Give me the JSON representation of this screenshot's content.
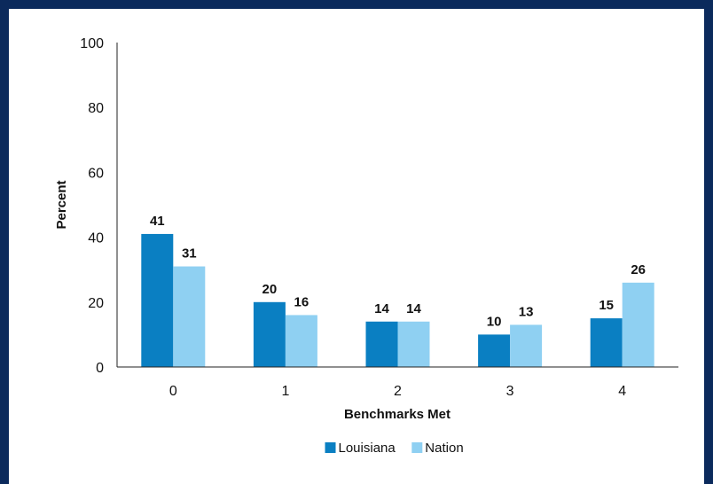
{
  "chart_data": {
    "type": "bar",
    "title": "",
    "xlabel": "Benchmarks Met",
    "ylabel": "Percent",
    "ylim": [
      0,
      100
    ],
    "yticks": [
      0,
      20,
      40,
      60,
      80,
      100
    ],
    "categories": [
      "0",
      "1",
      "2",
      "3",
      "4"
    ],
    "series": [
      {
        "name": "Louisiana",
        "values": [
          41,
          20,
          14,
          10,
          15
        ],
        "color": "#0a7fc2"
      },
      {
        "name": "Nation",
        "values": [
          31,
          16,
          14,
          13,
          26
        ],
        "color": "#8fd0f2"
      }
    ],
    "grid": false,
    "legend_position": "bottom"
  }
}
